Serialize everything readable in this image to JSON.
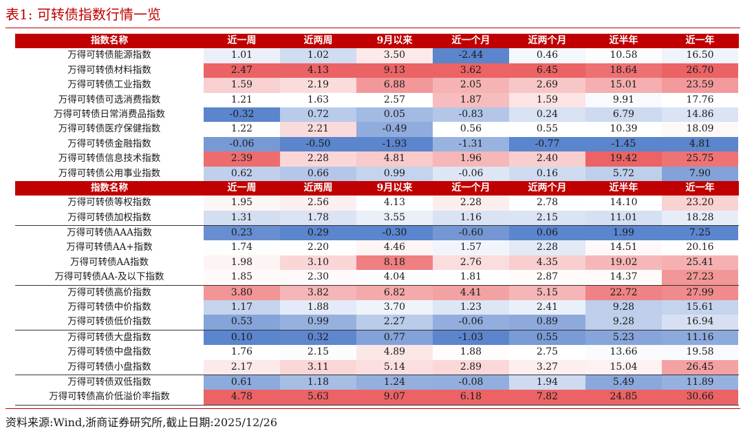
{
  "title": "表1:  可转债指数行情一览",
  "columns": [
    "指数名称",
    "近一周",
    "近两周",
    "9月以来",
    "近一个月",
    "近两个月",
    "近半年",
    "近一年"
  ],
  "section1": [
    {
      "name": "万得可转债能源指数",
      "values": [
        "1.01",
        "1.02",
        "3.50",
        "-2.44",
        "0.46",
        "10.58",
        "16.50"
      ]
    },
    {
      "name": "万得可转债材料指数",
      "values": [
        "2.47",
        "4.13",
        "9.13",
        "3.62",
        "6.45",
        "18.64",
        "26.70"
      ]
    },
    {
      "name": "万得可转债工业指数",
      "values": [
        "1.59",
        "2.19",
        "6.88",
        "2.05",
        "2.69",
        "15.01",
        "23.59"
      ]
    },
    {
      "name": "万得可转债可选消费指数",
      "values": [
        "1.21",
        "1.63",
        "2.57",
        "1.87",
        "1.59",
        "9.91",
        "17.76"
      ]
    },
    {
      "name": "万得可转债日常消费品指数",
      "values": [
        "-0.32",
        "0.72",
        "0.05",
        "-0.83",
        "0.24",
        "6.79",
        "14.86"
      ]
    },
    {
      "name": "万得可转债医疗保健指数",
      "values": [
        "1.22",
        "2.21",
        "-0.49",
        "0.56",
        "0.55",
        "10.39",
        "18.09"
      ]
    },
    {
      "name": "万得可转债金融指数",
      "values": [
        "-0.06",
        "-0.50",
        "-1.93",
        "-1.31",
        "-0.77",
        "-1.45",
        "4.81"
      ]
    },
    {
      "name": "万得可转债信息技术指数",
      "values": [
        "2.39",
        "2.28",
        "4.81",
        "1.96",
        "2.40",
        "19.42",
        "25.75"
      ]
    },
    {
      "name": "万得可转债公用事业指数",
      "values": [
        "0.62",
        "0.66",
        "0.99",
        "-0.06",
        "0.16",
        "5.72",
        "7.90"
      ]
    }
  ],
  "section2": [
    {
      "name": "万得可转债等权指数",
      "values": [
        "1.95",
        "2.56",
        "4.13",
        "2.28",
        "2.78",
        "14.10",
        "23.20"
      ],
      "sep": false
    },
    {
      "name": "万得可转债加权指数",
      "values": [
        "1.31",
        "1.78",
        "3.55",
        "1.16",
        "2.15",
        "11.01",
        "18.28"
      ],
      "sep": false
    },
    {
      "name": "万得可转债AAA指数",
      "values": [
        "0.23",
        "0.29",
        "-0.30",
        "-0.60",
        "0.06",
        "1.99",
        "7.25"
      ],
      "sep": true
    },
    {
      "name": "万得可转债AA+指数",
      "values": [
        "1.74",
        "2.20",
        "4.46",
        "1.57",
        "2.28",
        "14.51",
        "20.16"
      ],
      "sep": false
    },
    {
      "name": "万得可转债AA指数",
      "values": [
        "1.98",
        "3.10",
        "8.18",
        "2.76",
        "4.35",
        "19.02",
        "25.41"
      ],
      "sep": false
    },
    {
      "name": "万得可转债AA-及以下指数",
      "values": [
        "1.85",
        "2.30",
        "4.04",
        "1.81",
        "2.87",
        "14.37",
        "27.23"
      ],
      "sep": false
    },
    {
      "name": "万得可转债高价指数",
      "values": [
        "3.80",
        "3.82",
        "6.82",
        "4.41",
        "5.15",
        "22.72",
        "27.99"
      ],
      "sep": true
    },
    {
      "name": "万得可转债中价指数",
      "values": [
        "1.17",
        "1.88",
        "3.70",
        "1.23",
        "2.41",
        "9.28",
        "15.61"
      ],
      "sep": false
    },
    {
      "name": "万得可转债低价指数",
      "values": [
        "0.53",
        "0.99",
        "2.27",
        "-0.06",
        "0.89",
        "9.28",
        "16.94"
      ],
      "sep": false
    },
    {
      "name": "万得可转债大盘指数",
      "values": [
        "0.10",
        "0.32",
        "0.77",
        "-1.03",
        "0.55",
        "5.23",
        "11.16"
      ],
      "sep": true
    },
    {
      "name": "万得可转债中盘指数",
      "values": [
        "1.76",
        "2.15",
        "4.89",
        "1.88",
        "2.75",
        "13.66",
        "19.58"
      ],
      "sep": false
    },
    {
      "name": "万得可转债小盘指数",
      "values": [
        "2.17",
        "3.11",
        "5.14",
        "2.89",
        "3.27",
        "15.04",
        "26.45"
      ],
      "sep": false
    },
    {
      "name": "万得可转债双低指数",
      "values": [
        "0.61",
        "1.18",
        "1.24",
        "-0.08",
        "1.94",
        "5.49",
        "11.89"
      ],
      "sep": true
    },
    {
      "name": "万得可转债高价低溢价率指数",
      "values": [
        "4.78",
        "5.63",
        "9.07",
        "6.18",
        "7.82",
        "24.85",
        "30.66"
      ],
      "sep": false
    }
  ],
  "source": "资料来源:Wind,浙商证券研究所,截止日期:2025/12/26",
  "colors": {
    "accent": "#c00000",
    "positive": "#e8474a",
    "negative": "#3e6fc4"
  }
}
